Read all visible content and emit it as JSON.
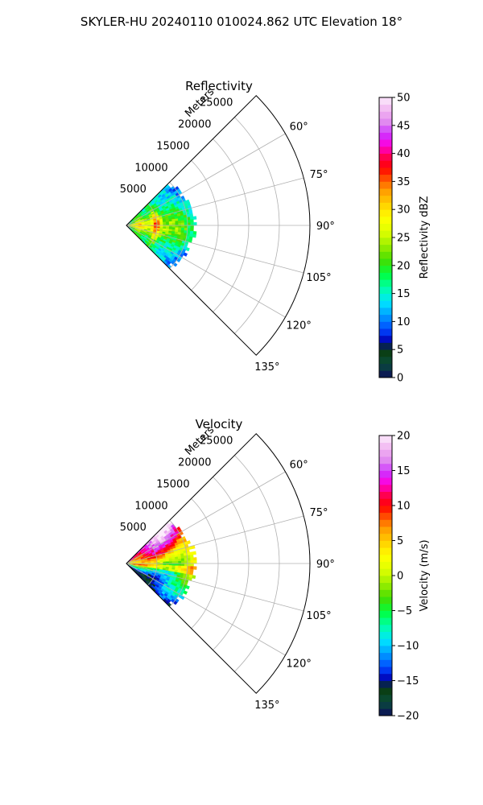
{
  "figure": {
    "suptitle": "SKYLER-HU  20240110  010024.862 UTC Elevation 18°"
  },
  "chart_data": [
    {
      "type": "heatmap",
      "projection": "polar-sector",
      "title": "Reflectivity",
      "radial_axis_label": "Meters",
      "radial_range": [
        0,
        30000
      ],
      "radial_ticks": [
        5000,
        10000,
        15000,
        20000,
        25000
      ],
      "radial_tick_labels": [
        "5000",
        "10000",
        "15000",
        "20000",
        "25000"
      ],
      "azimuth_range_deg": [
        45,
        135
      ],
      "azimuth_ticks_deg": [
        60,
        75,
        90,
        105,
        120,
        135
      ],
      "azimuth_tick_labels": [
        "60°",
        "75°",
        "90°",
        "105°",
        "120°",
        "135°"
      ],
      "grid": true,
      "data_extent_m": 11000,
      "colorbar": {
        "label": "Reflectivity dBZ",
        "range": [
          0,
          50
        ],
        "ticks": [
          0,
          5,
          10,
          15,
          20,
          25,
          30,
          35,
          40,
          45,
          50
        ],
        "tick_labels": [
          "0",
          "5",
          "10",
          "15",
          "20",
          "25",
          "30",
          "35",
          "40",
          "45",
          "50"
        ]
      }
    },
    {
      "type": "heatmap",
      "projection": "polar-sector",
      "title": "Velocity",
      "radial_axis_label": "Meters",
      "radial_range": [
        0,
        30000
      ],
      "radial_ticks": [
        5000,
        10000,
        15000,
        20000,
        25000
      ],
      "radial_tick_labels": [
        "5000",
        "10000",
        "15000",
        "20000",
        "25000"
      ],
      "azimuth_range_deg": [
        45,
        135
      ],
      "azimuth_ticks_deg": [
        60,
        75,
        90,
        105,
        120,
        135
      ],
      "azimuth_tick_labels": [
        "60°",
        "75°",
        "90°",
        "105°",
        "120°",
        "135°"
      ],
      "grid": true,
      "data_extent_m": 11000,
      "colorbar": {
        "label": "Velocity (m/s)",
        "range": [
          -20,
          20
        ],
        "ticks": [
          -20,
          -15,
          -10,
          -5,
          0,
          5,
          10,
          15,
          20
        ],
        "tick_labels": [
          "−20",
          "−15",
          "−10",
          "−5",
          "0",
          "5",
          "10",
          "15",
          "20"
        ]
      }
    }
  ],
  "colormap_stops": [
    {
      "f": 0.0,
      "c": "#0b0b5a"
    },
    {
      "f": 0.05,
      "c": "#0a4d3a"
    },
    {
      "f": 0.1,
      "c": "#0a3a0a"
    },
    {
      "f": 0.13,
      "c": "#0000b4"
    },
    {
      "f": 0.17,
      "c": "#0044ff"
    },
    {
      "f": 0.22,
      "c": "#0099ff"
    },
    {
      "f": 0.27,
      "c": "#00e5ff"
    },
    {
      "f": 0.32,
      "c": "#00ffaa"
    },
    {
      "f": 0.37,
      "c": "#00ff40"
    },
    {
      "f": 0.42,
      "c": "#44dd00"
    },
    {
      "f": 0.47,
      "c": "#99ee00"
    },
    {
      "f": 0.52,
      "c": "#ddff00"
    },
    {
      "f": 0.57,
      "c": "#ffff00"
    },
    {
      "f": 0.62,
      "c": "#ffd000"
    },
    {
      "f": 0.67,
      "c": "#ff9a00"
    },
    {
      "f": 0.71,
      "c": "#ff5000"
    },
    {
      "f": 0.75,
      "c": "#ff0000"
    },
    {
      "f": 0.79,
      "c": "#ff0055"
    },
    {
      "f": 0.83,
      "c": "#ff00dd"
    },
    {
      "f": 0.87,
      "c": "#cc33ff"
    },
    {
      "f": 0.91,
      "c": "#e088f0"
    },
    {
      "f": 0.95,
      "c": "#f0b0f0"
    },
    {
      "f": 1.0,
      "c": "#fcecfc"
    }
  ]
}
